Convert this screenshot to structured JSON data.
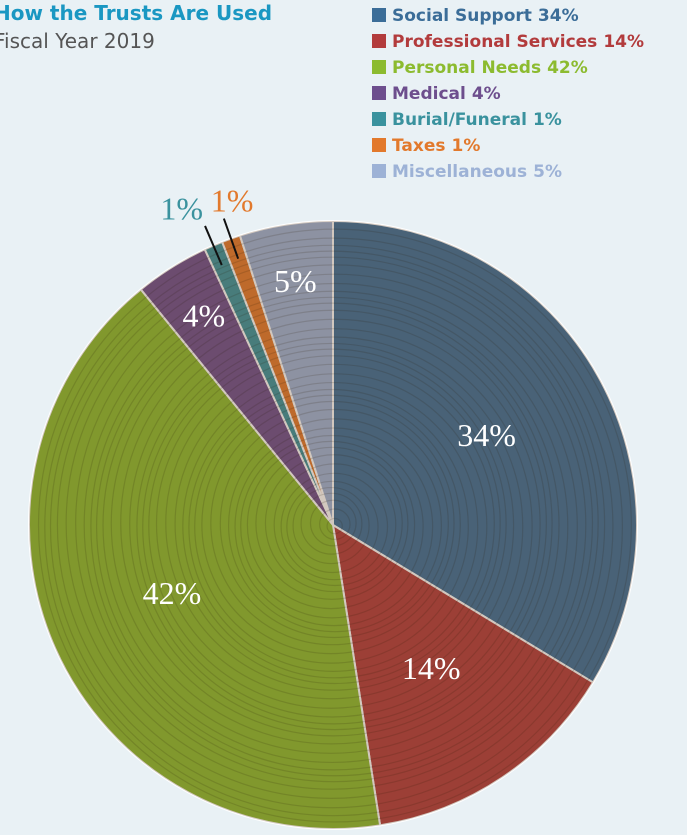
{
  "chart_data": {
    "type": "pie",
    "title": "How the Trusts Are Used",
    "subtitle": "Fiscal Year 2019",
    "categories": [
      "Social Support",
      "Professional Services",
      "Personal Needs",
      "Medical",
      "Burial/Funeral",
      "Taxes",
      "Miscellaneous"
    ],
    "values": [
      34,
      14,
      42,
      4,
      1,
      1,
      5
    ],
    "value_labels": [
      "34%",
      "14%",
      "42%",
      "4%",
      "1%",
      "1%",
      "5%"
    ],
    "colors": [
      "#3b6d98",
      "#b23b3c",
      "#8cbb2f",
      "#6d4e8d",
      "#3a929e",
      "#e2792c",
      "#9db2d6"
    ]
  }
}
